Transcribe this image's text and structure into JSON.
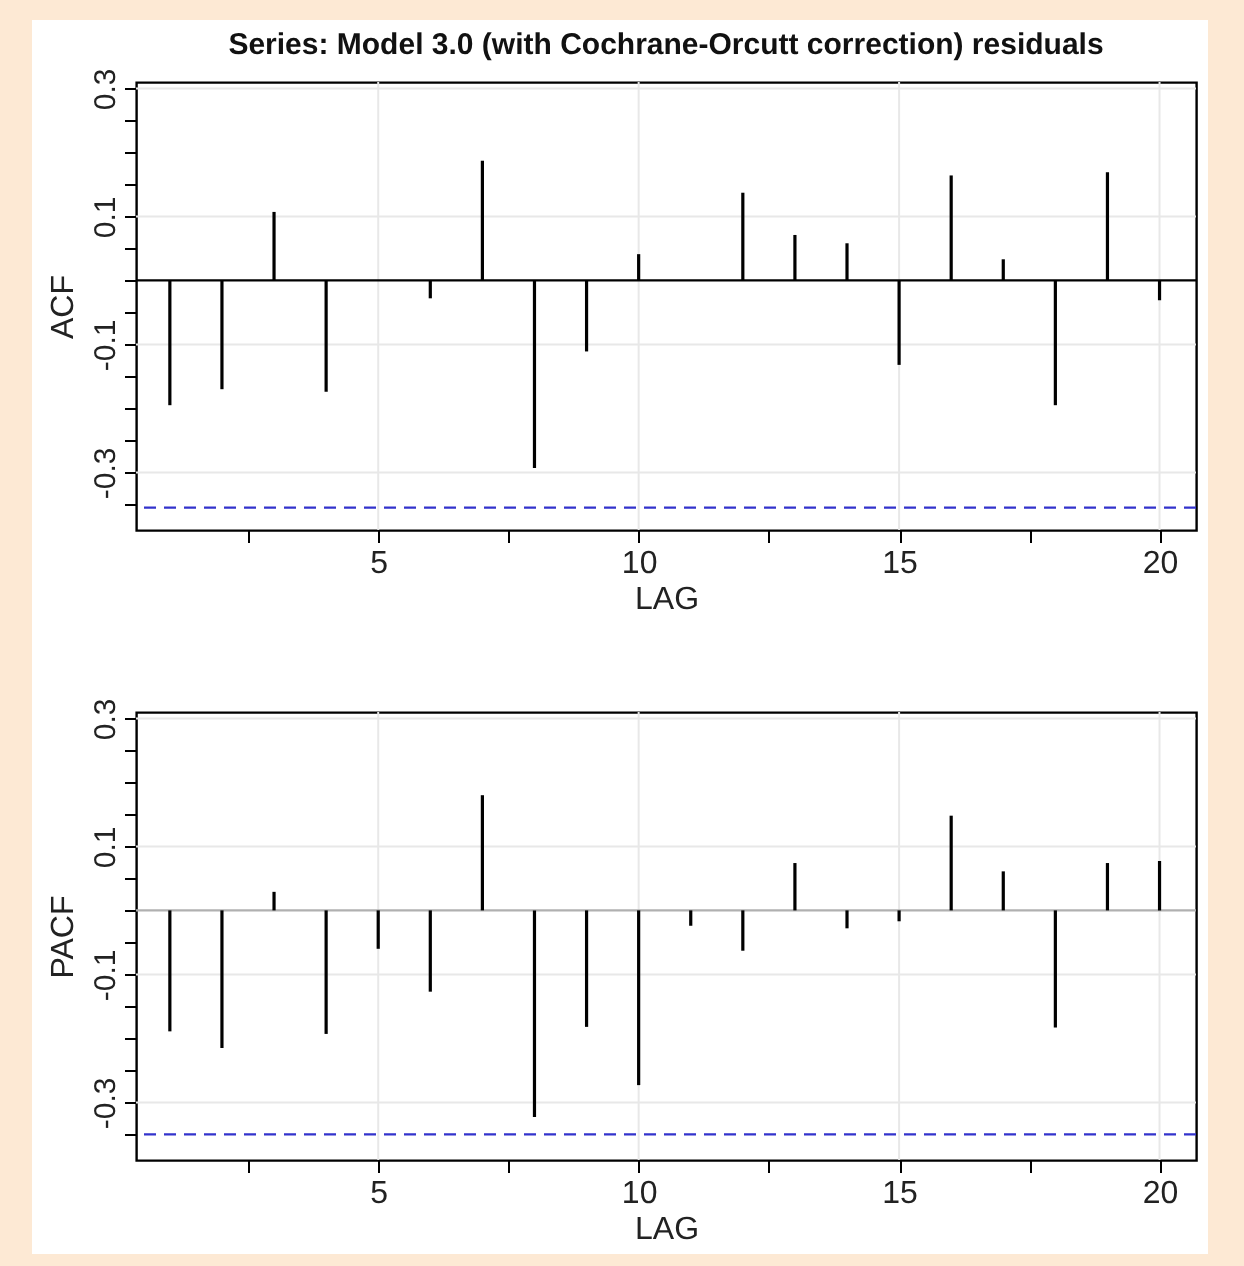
{
  "chart_data": [
    {
      "type": "bar",
      "title": "Series: Model 3.0 (with Cochrane-Orcutt correction) residuals",
      "xlabel": "LAG",
      "ylabel": "ACF",
      "x": [
        1,
        2,
        3,
        4,
        5,
        6,
        7,
        8,
        9,
        10,
        11,
        12,
        13,
        14,
        15,
        16,
        17,
        18,
        19,
        20
      ],
      "series": [
        {
          "color": "#000000",
          "values": [
            -0.195,
            -0.17,
            0.107,
            -0.174,
            0,
            -0.028,
            0.187,
            -0.293,
            -0.111,
            0.041,
            0,
            0.137,
            0.071,
            0.058,
            -0.132,
            0.164,
            0.033,
            -0.195,
            0.169,
            -0.031
          ]
        }
      ],
      "xlim": [
        0.35,
        20.7
      ],
      "xticks": [
        {
          "value": 2.5,
          "label": null
        },
        5,
        {
          "value": 7.5,
          "label": null
        },
        10,
        {
          "value": 12.5,
          "label": null
        },
        15,
        {
          "value": 17.5,
          "label": null
        },
        20
      ],
      "ylim": [
        -0.39,
        0.31
      ],
      "yticks": [
        {
          "value": -0.35,
          "label": null
        },
        {
          "value": -0.3,
          "label": "-0.3"
        },
        {
          "value": -0.25,
          "label": null
        },
        {
          "value": -0.2,
          "label": null
        },
        {
          "value": -0.15,
          "label": null
        },
        {
          "value": -0.1,
          "label": "-0.1"
        },
        {
          "value": -0.05,
          "label": null
        },
        {
          "value": 0,
          "label": null
        },
        {
          "value": 0.05,
          "label": null
        },
        {
          "value": 0.1,
          "label": "0.1"
        },
        {
          "value": 0.15,
          "label": null
        },
        {
          "value": 0.2,
          "label": null
        },
        {
          "value": 0.25,
          "label": null
        },
        {
          "value": 0.3,
          "label": "0.3"
        }
      ],
      "ref_lines": [
        {
          "axis": "y",
          "value": 0,
          "color": "#000000",
          "line_style": "solid"
        },
        {
          "axis": "y",
          "value": -0.355,
          "color": "#3333cc",
          "line_style": "dashed"
        }
      ],
      "grid": true
    },
    {
      "type": "bar",
      "xlabel": "LAG",
      "ylabel": "PACF",
      "x": [
        1,
        2,
        3,
        4,
        5,
        6,
        7,
        8,
        9,
        10,
        11,
        12,
        13,
        14,
        15,
        16,
        17,
        18,
        19,
        20
      ],
      "series": [
        {
          "color": "#000000",
          "values": [
            -0.189,
            -0.215,
            0.029,
            -0.193,
            -0.06,
            -0.127,
            0.18,
            -0.323,
            -0.182,
            -0.273,
            -0.024,
            -0.063,
            0.074,
            -0.028,
            -0.017,
            0.148,
            0.061,
            -0.183,
            0.074,
            0.077
          ]
        }
      ],
      "xlim": [
        0.35,
        20.7
      ],
      "xticks": [
        {
          "value": 2.5,
          "label": null
        },
        5,
        {
          "value": 7.5,
          "label": null
        },
        10,
        {
          "value": 12.5,
          "label": null
        },
        15,
        {
          "value": 17.5,
          "label": null
        },
        20
      ],
      "ylim": [
        -0.39,
        0.31
      ],
      "yticks": [
        {
          "value": -0.35,
          "label": null
        },
        {
          "value": -0.3,
          "label": "-0.3"
        },
        {
          "value": -0.25,
          "label": null
        },
        {
          "value": -0.2,
          "label": null
        },
        {
          "value": -0.15,
          "label": null
        },
        {
          "value": -0.1,
          "label": "-0.1"
        },
        {
          "value": -0.05,
          "label": null
        },
        {
          "value": 0,
          "label": null
        },
        {
          "value": 0.05,
          "label": null
        },
        {
          "value": 0.1,
          "label": "0.1"
        },
        {
          "value": 0.15,
          "label": null
        },
        {
          "value": 0.2,
          "label": null
        },
        {
          "value": 0.25,
          "label": null
        },
        {
          "value": 0.3,
          "label": "0.3"
        }
      ],
      "ref_lines": [
        {
          "axis": "y",
          "value": 0,
          "color": "#b0b0b0",
          "line_style": "solid"
        },
        {
          "axis": "y",
          "value": -0.35,
          "color": "#3333cc",
          "line_style": "dashed"
        }
      ],
      "grid": true
    }
  ]
}
